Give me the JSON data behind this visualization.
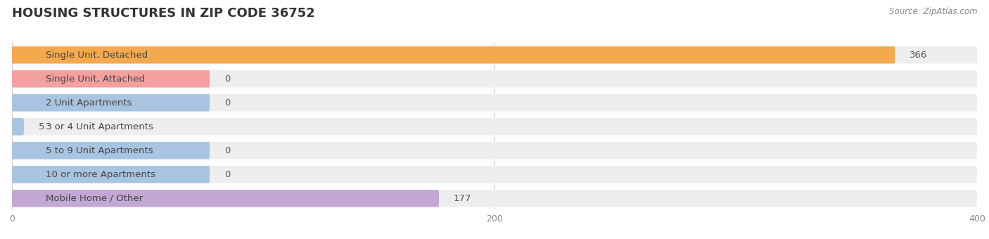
{
  "title": "HOUSING STRUCTURES IN ZIP CODE 36752",
  "source": "Source: ZipAtlas.com",
  "categories": [
    "Single Unit, Detached",
    "Single Unit, Attached",
    "2 Unit Apartments",
    "3 or 4 Unit Apartments",
    "5 to 9 Unit Apartments",
    "10 or more Apartments",
    "Mobile Home / Other"
  ],
  "values": [
    366,
    0,
    0,
    5,
    0,
    0,
    177
  ],
  "bar_colors": [
    "#F5A94E",
    "#F4A0A0",
    "#A8C4E0",
    "#A8C4E0",
    "#A8C4E0",
    "#A8C4E0",
    "#C4A8D4"
  ],
  "xlim": [
    0,
    400
  ],
  "xticks": [
    0,
    200,
    400
  ],
  "background_color": "#ffffff",
  "bar_bg_color": "#eeeeee",
  "title_fontsize": 13,
  "label_fontsize": 9.5,
  "value_fontsize": 9.5
}
